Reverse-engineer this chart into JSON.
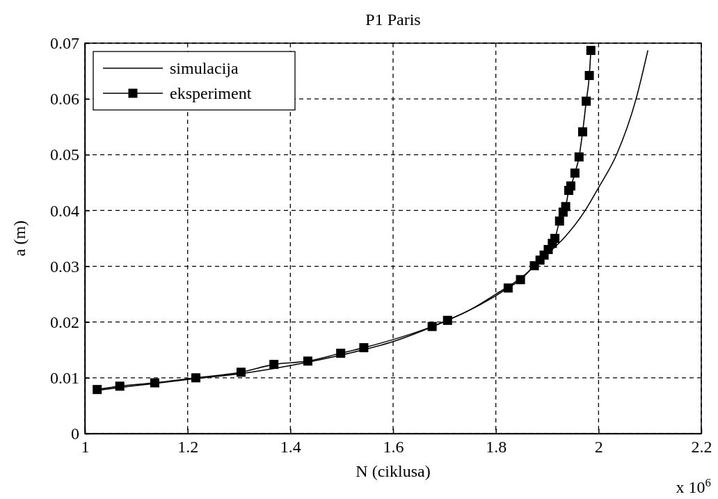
{
  "chart_data": {
    "type": "line",
    "title": "P1 Paris",
    "xlabel": "N (ciklusa)",
    "ylabel": "a (m)",
    "annotations": [
      "x 10$^{6}$"
    ],
    "xlim": [
      1,
      2.2
    ],
    "xticks": [
      1,
      1.2,
      1.4,
      1.6,
      1.8,
      2,
      2.2
    ],
    "ylim": [
      0,
      0.07
    ],
    "yticks": [
      0,
      0.01,
      0.02,
      0.03,
      0.04,
      0.05,
      0.06,
      0.07
    ],
    "grid": true,
    "legend": "top left",
    "line_style": "solid",
    "series": [
      {
        "name": "simulacija",
        "color": "#000000",
        "marker": "none",
        "x": [
          1.02,
          1.1,
          1.2,
          1.3,
          1.4,
          1.5,
          1.6,
          1.7,
          1.75,
          1.8,
          1.85,
          1.875,
          1.9,
          1.932,
          1.974,
          2.0,
          2.035,
          2.073,
          2.096
        ],
        "values": [
          0.0077,
          0.0086,
          0.0097,
          0.0107,
          0.0122,
          0.0141,
          0.0165,
          0.0201,
          0.0222,
          0.025,
          0.028,
          0.03,
          0.0322,
          0.035,
          0.04,
          0.0441,
          0.05,
          0.06,
          0.0687
        ]
      },
      {
        "name": "eksperiment",
        "color": "#000000",
        "marker": "square",
        "x": [
          1.024,
          1.068,
          1.136,
          1.216,
          1.304,
          1.368,
          1.434,
          1.498,
          1.543,
          1.676,
          1.706,
          1.824,
          1.848,
          1.875,
          1.886,
          1.894,
          1.902,
          1.91,
          1.915,
          1.924,
          1.931,
          1.936,
          1.942,
          1.946,
          1.954,
          1.962,
          1.969,
          1.976,
          1.982,
          1.985
        ],
        "values": [
          0.0079,
          0.0085,
          0.0091,
          0.01,
          0.011,
          0.0124,
          0.013,
          0.0144,
          0.0154,
          0.0192,
          0.0203,
          0.0261,
          0.0276,
          0.0301,
          0.0311,
          0.032,
          0.033,
          0.0341,
          0.035,
          0.0381,
          0.0397,
          0.0407,
          0.0436,
          0.0444,
          0.0467,
          0.0496,
          0.0541,
          0.0596,
          0.0642,
          0.0687
        ]
      }
    ]
  }
}
